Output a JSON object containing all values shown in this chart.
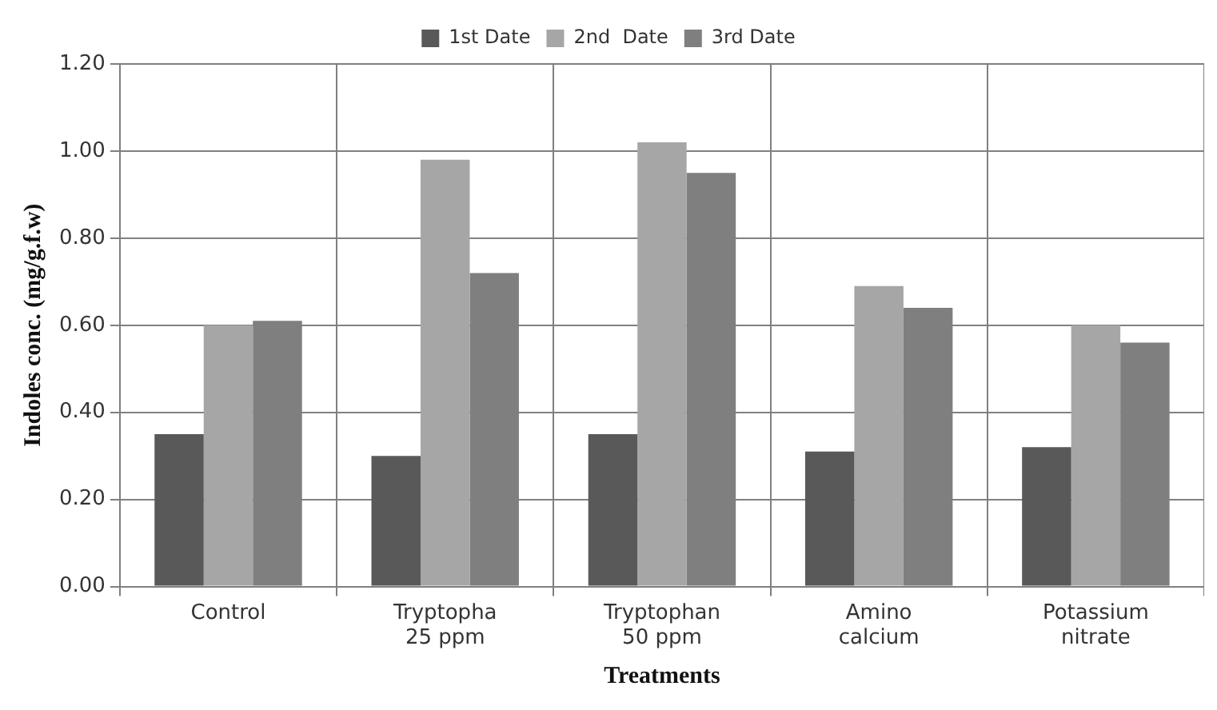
{
  "chart_data": {
    "type": "bar",
    "xlabel": "Treatments",
    "ylabel": "Indoles conc. (mg/g.f.w)",
    "categories": [
      "Control",
      "Tryptopha 25 ppm",
      "Tryptophan 50 ppm",
      "Amino calcium",
      "Potassium nitrate"
    ],
    "series": [
      {
        "name": "1st Date",
        "color": "#595959",
        "values": [
          0.35,
          0.3,
          0.35,
          0.31,
          0.32
        ]
      },
      {
        "name": "2nd  Date",
        "color": "#a6a6a6",
        "values": [
          0.6,
          0.98,
          1.02,
          0.69,
          0.6
        ]
      },
      {
        "name": "3rd Date",
        "color": "#7f7f7f",
        "values": [
          0.61,
          0.72,
          0.95,
          0.64,
          0.56
        ]
      }
    ],
    "ylim": [
      0,
      1.2
    ],
    "yticks": [
      {
        "value": 0,
        "label": "0.00"
      },
      {
        "value": 0.2,
        "label": "0.20"
      },
      {
        "value": 0.4,
        "label": "0.40"
      },
      {
        "value": 0.6,
        "label": "0.60"
      },
      {
        "value": 0.8,
        "label": "0.80"
      },
      {
        "value": 1,
        "label": "1.00"
      },
      {
        "value": 1.2,
        "label": "1.20"
      }
    ],
    "grid": true,
    "legend": "top"
  }
}
